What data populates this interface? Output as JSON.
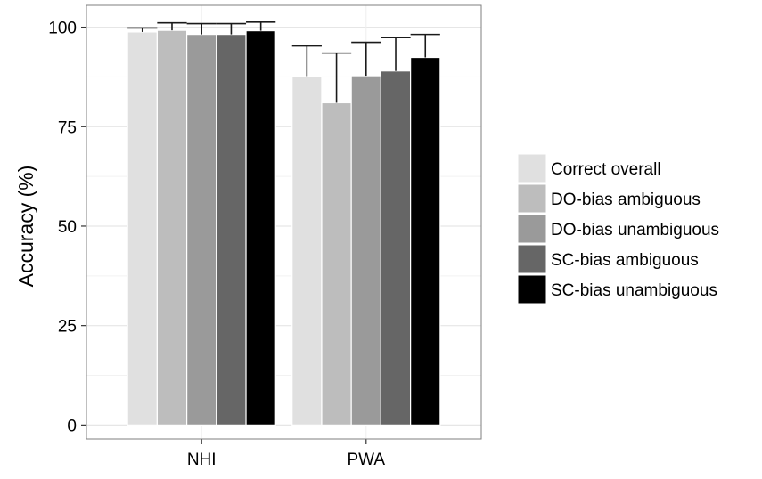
{
  "chart_data": {
    "type": "bar",
    "categories": [
      "NHI",
      "PWA"
    ],
    "series": [
      {
        "name": "Correct overall",
        "color": "#e0e0e0",
        "values": [
          98.8,
          87.7
        ],
        "error": [
          1.0,
          7.6
        ]
      },
      {
        "name": "DO-bias ambiguous",
        "color": "#bdbdbd",
        "values": [
          99.2,
          81.0
        ],
        "error": [
          1.9,
          12.5
        ]
      },
      {
        "name": "DO-bias unambiguous",
        "color": "#9a9a9a",
        "values": [
          98.2,
          87.8
        ],
        "error": [
          2.7,
          8.4
        ]
      },
      {
        "name": "SC-bias ambiguous",
        "color": "#666666",
        "values": [
          98.2,
          89.0
        ],
        "error": [
          2.7,
          8.4
        ]
      },
      {
        "name": "SC-bias unambiguous",
        "color": "#000000",
        "values": [
          99.1,
          92.4
        ],
        "error": [
          2.2,
          5.8
        ]
      }
    ],
    "ylabel": "Accuracy (%)",
    "xlabel": "",
    "ylim": [
      -3.5,
      105.5
    ],
    "yticks": [
      0,
      25,
      50,
      75,
      100
    ],
    "grid": true,
    "legend_position": "right"
  }
}
